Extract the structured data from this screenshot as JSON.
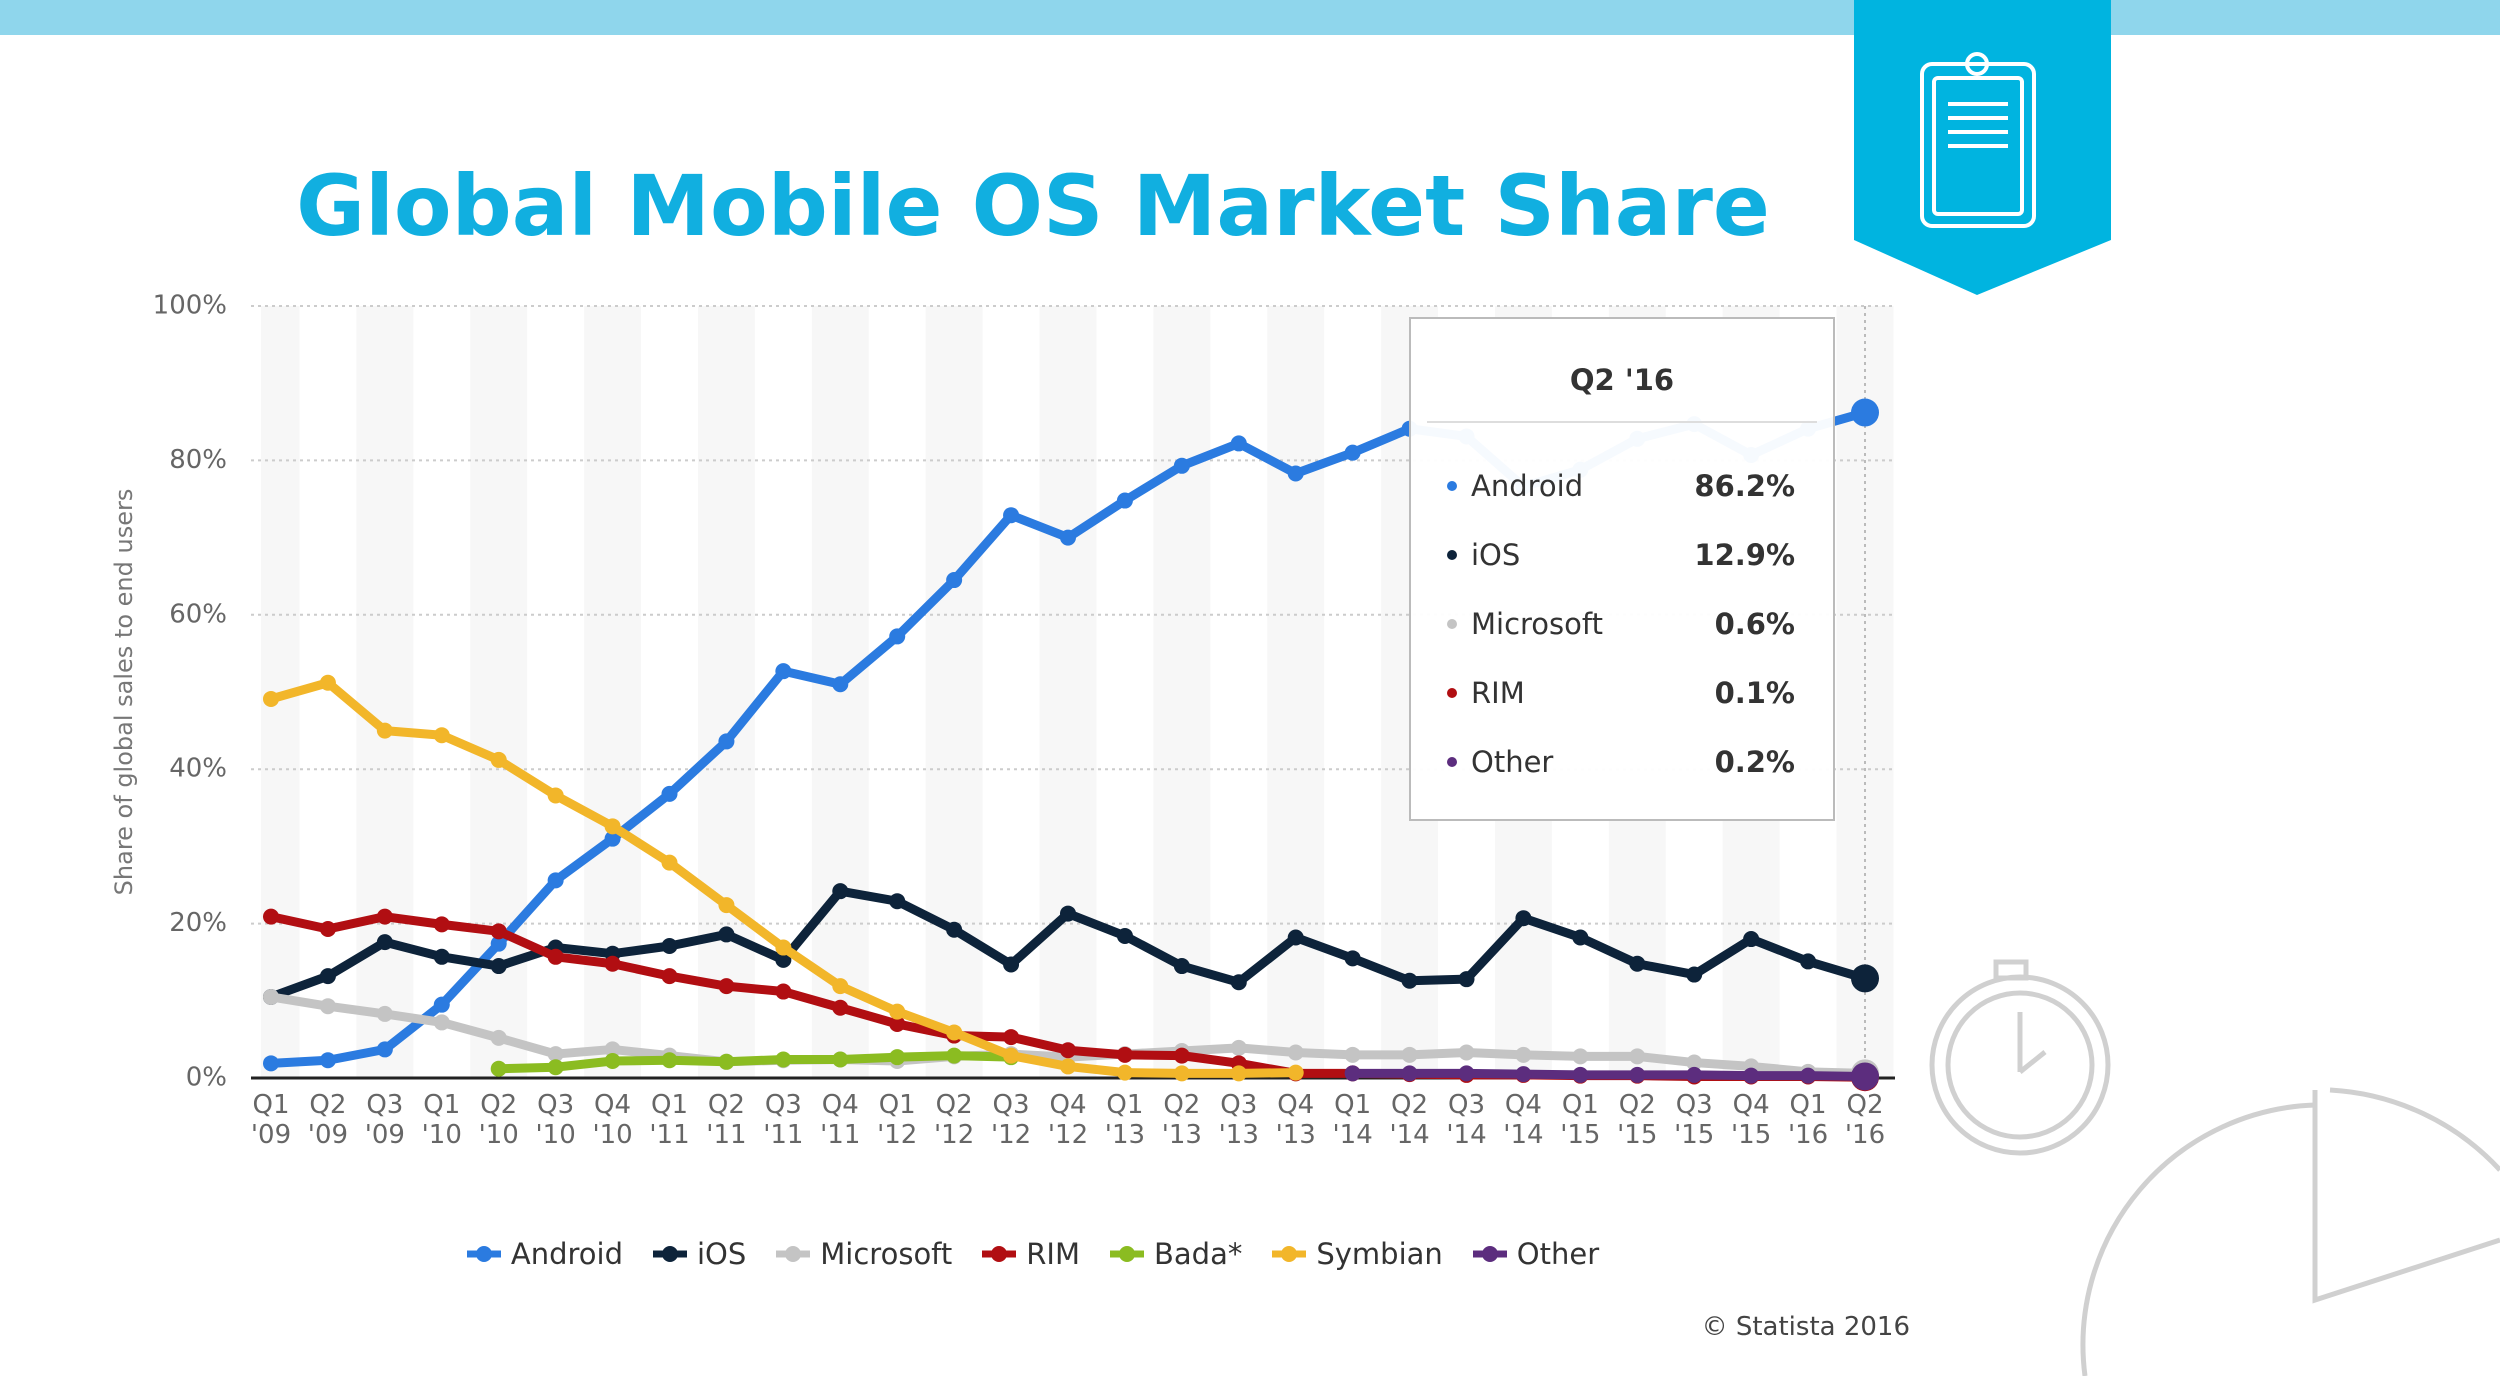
{
  "chart_data": {
    "type": "line",
    "title": "Global Mobile OS Market Share",
    "y_label": "Share of global sales to end users",
    "credit": "© Statista 2016",
    "categories": [
      "Q1 '09",
      "Q2 '09",
      "Q3 '09",
      "Q1 '10",
      "Q2 '10",
      "Q3 '10",
      "Q4 '10",
      "Q1 '11",
      "Q2 '11",
      "Q3 '11",
      "Q4 '11",
      "Q1 '12",
      "Q2 '12",
      "Q3 '12",
      "Q4 '12",
      "Q1 '13",
      "Q2 '13",
      "Q3 '13",
      "Q4 '13",
      "Q1 '14",
      "Q2 '14",
      "Q3 '14",
      "Q4 '14",
      "Q1 '15",
      "Q2 '15",
      "Q3 '15",
      "Q4 '15",
      "Q1 '16",
      "Q2 '16"
    ],
    "ylim": [
      0,
      100
    ],
    "yticks": [
      {
        "value": 0,
        "label": "0%"
      },
      {
        "value": 20,
        "label": "20%"
      },
      {
        "value": 40,
        "label": "40%"
      },
      {
        "value": 60,
        "label": "60%"
      },
      {
        "value": 80,
        "label": "80%"
      },
      {
        "value": 100,
        "label": "100%"
      }
    ],
    "grid": true,
    "legend": "bottom",
    "series": [
      {
        "name": "Android",
        "color": "#2b7be0",
        "values": [
          1.9,
          2.3,
          3.7,
          9.5,
          17.4,
          25.6,
          31.0,
          36.8,
          43.6,
          52.7,
          51.0,
          57.2,
          64.5,
          72.9,
          70.0,
          74.8,
          79.3,
          82.2,
          78.3,
          81.0,
          84.1,
          83.1,
          76.6,
          78.8,
          82.8,
          84.7,
          80.7,
          84.1,
          86.2
        ]
      },
      {
        "name": "iOS",
        "color": "#0d233a",
        "values": [
          10.5,
          13.2,
          17.6,
          15.7,
          14.5,
          16.9,
          16.1,
          17.1,
          18.6,
          15.3,
          24.2,
          22.9,
          19.2,
          14.7,
          21.3,
          18.4,
          14.5,
          12.4,
          18.2,
          15.5,
          12.6,
          12.8,
          20.7,
          18.2,
          14.8,
          13.4,
          18.0,
          15.1,
          12.9
        ]
      },
      {
        "name": "Microsoft",
        "color": "#c4c4c4",
        "values": [
          10.5,
          9.3,
          8.3,
          7.2,
          5.2,
          3.1,
          3.7,
          2.9,
          2.1,
          2.3,
          2.4,
          2.2,
          2.8,
          3.1,
          2.7,
          3.1,
          3.5,
          3.9,
          3.3,
          3.0,
          3.0,
          3.3,
          3.0,
          2.8,
          2.8,
          2.0,
          1.5,
          0.8,
          0.6
        ]
      },
      {
        "name": "RIM",
        "color": "#b10e12",
        "values": [
          20.9,
          19.3,
          20.9,
          19.9,
          19.0,
          15.7,
          14.8,
          13.2,
          11.9,
          11.2,
          9.1,
          7.0,
          5.5,
          5.3,
          3.6,
          3.0,
          2.9,
          1.9,
          0.6,
          0.6,
          0.5,
          0.4,
          0.4,
          0.3,
          0.3,
          0.2,
          0.2,
          0.2,
          0.1
        ]
      },
      {
        "name": "Bada*",
        "color": "#8bbc21",
        "values": [
          null,
          null,
          null,
          null,
          1.2,
          1.4,
          2.2,
          2.3,
          2.1,
          2.4,
          2.4,
          2.7,
          2.9,
          2.7,
          null,
          null,
          null,
          null,
          null,
          null,
          null,
          null,
          null,
          null,
          null,
          null,
          null,
          null,
          null
        ]
      },
      {
        "name": "Symbian",
        "color": "#f2b62a",
        "values": [
          49.1,
          51.2,
          45.0,
          44.4,
          41.2,
          36.6,
          32.6,
          27.9,
          22.4,
          16.9,
          11.9,
          8.6,
          5.9,
          2.9,
          1.5,
          0.7,
          0.6,
          0.6,
          0.7,
          null,
          null,
          null,
          null,
          null,
          null,
          null,
          null,
          null,
          null
        ]
      },
      {
        "name": "Other",
        "color": "#5c2d7e",
        "values": [
          null,
          null,
          null,
          null,
          null,
          null,
          null,
          null,
          null,
          null,
          null,
          null,
          null,
          null,
          null,
          null,
          null,
          null,
          null,
          0.6,
          0.6,
          0.6,
          0.5,
          0.4,
          0.4,
          0.4,
          0.3,
          0.3,
          0.2
        ]
      }
    ],
    "tooltip": {
      "title": "Q2 '16",
      "names": [
        "Android",
        "iOS",
        "Microsoft",
        "RIM",
        "Other"
      ],
      "values": [
        86.2,
        12.9,
        0.6,
        0.1,
        0.2
      ],
      "value_labels": [
        "86.2%",
        "12.9%",
        "0.6%",
        "0.1%",
        "0.2%"
      ]
    }
  }
}
